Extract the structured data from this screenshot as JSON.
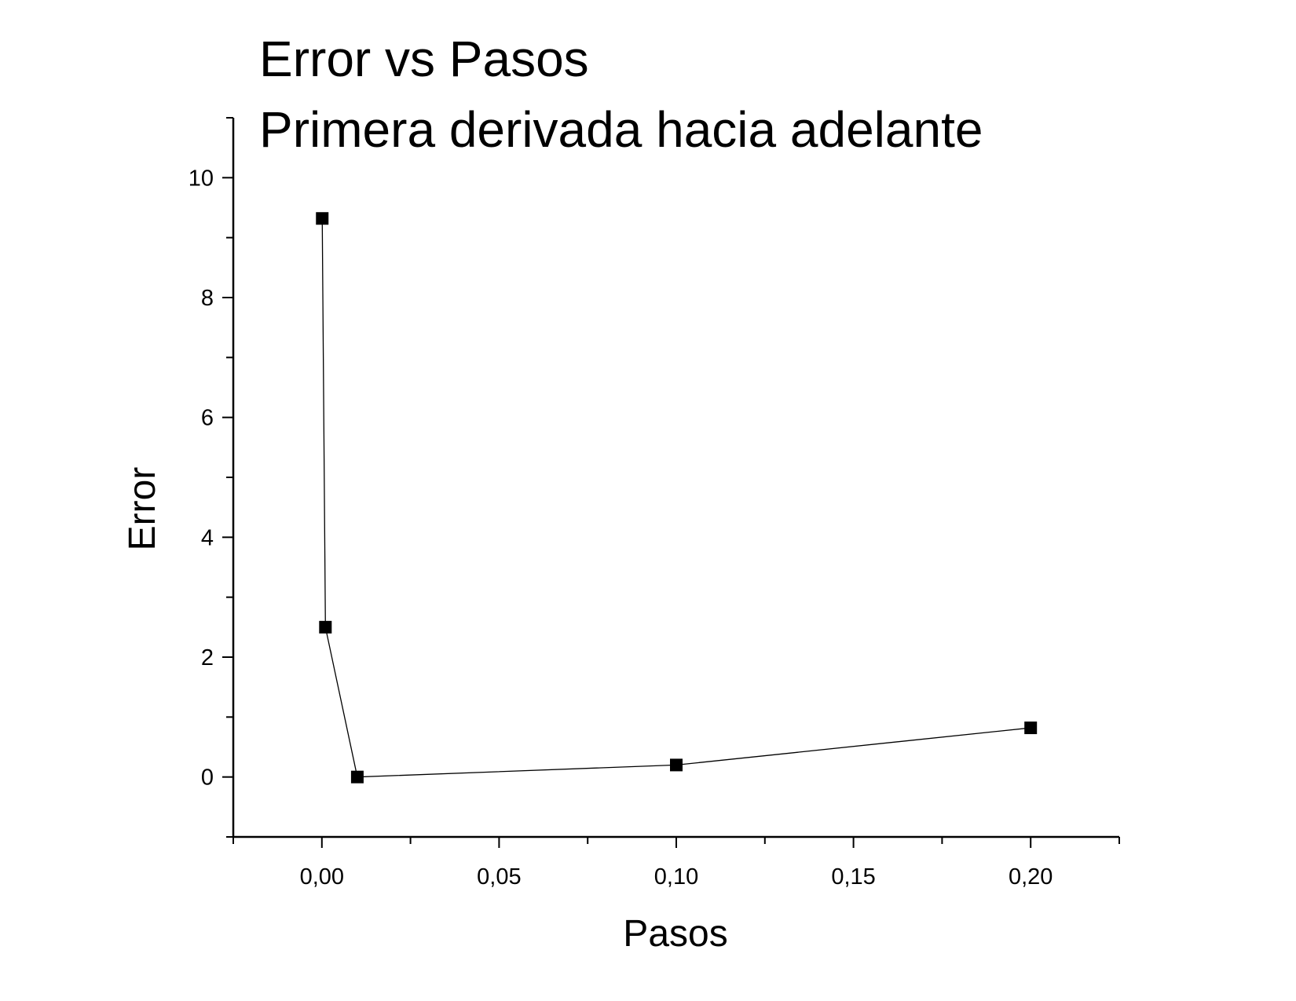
{
  "chart_data": {
    "type": "line",
    "title": "Error vs Pasos",
    "subtitle": "Primera derivada hacia adelante",
    "xlabel": "Pasos",
    "ylabel": "Error",
    "xlim": [
      -0.025,
      0.225
    ],
    "ylim": [
      -1,
      11
    ],
    "x_ticks": [
      0.0,
      0.05,
      0.1,
      0.15,
      0.2
    ],
    "x_tick_labels": [
      "0,00",
      "0,05",
      "0,10",
      "0,15",
      "0,20"
    ],
    "x_minor_ticks": [
      -0.025,
      0.025,
      0.075,
      0.125,
      0.175,
      0.225
    ],
    "y_ticks": [
      0,
      2,
      4,
      6,
      8,
      10
    ],
    "y_tick_labels": [
      "0",
      "2",
      "4",
      "6",
      "8",
      "10"
    ],
    "y_minor_ticks": [
      -1,
      1,
      3,
      5,
      7,
      9,
      11
    ],
    "grid": false,
    "marker": "square",
    "color": "#000000",
    "series": [
      {
        "x": [
          0.0001,
          0.001,
          0.01,
          0.1,
          0.2
        ],
        "y": [
          9.32,
          2.5,
          0.0,
          0.2,
          0.82
        ]
      }
    ]
  }
}
